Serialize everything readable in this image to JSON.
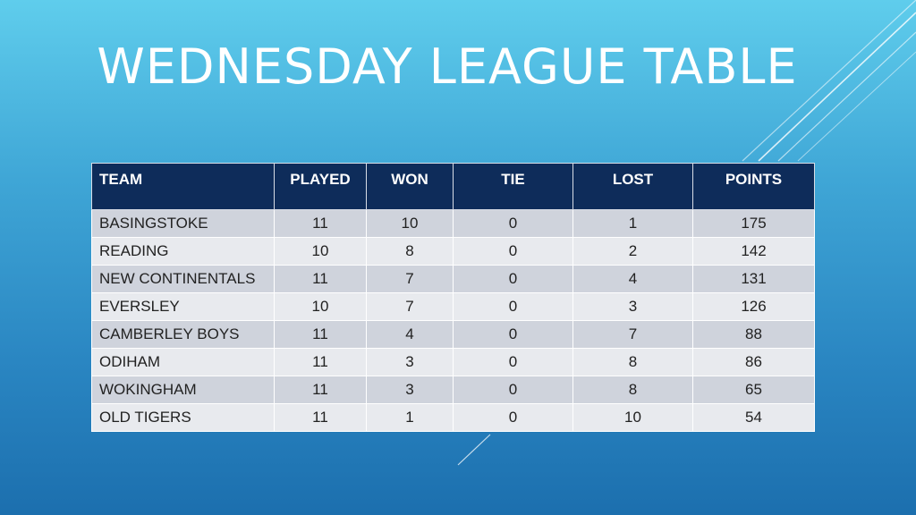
{
  "slide": {
    "title": "WEDNESDAY LEAGUE TABLE",
    "colors": {
      "header_bg": "#0e2c5a",
      "header_text": "#ffffff",
      "row_odd": "#cfd3dc",
      "row_even": "#e8eaee",
      "background_top": "#5fcdec",
      "background_bottom": "#1c6fae"
    }
  },
  "table": {
    "headers": [
      "TEAM",
      "PLAYED",
      "WON",
      "TIE",
      "LOST",
      "POINTS"
    ],
    "rows": [
      [
        "BASINGSTOKE",
        "11",
        "10",
        "0",
        "1",
        "175"
      ],
      [
        "READING",
        "10",
        "8",
        "0",
        "2",
        "142"
      ],
      [
        "NEW CONTINENTALS",
        "11",
        "7",
        "0",
        "4",
        "131"
      ],
      [
        "EVERSLEY",
        "10",
        "7",
        "0",
        "3",
        "126"
      ],
      [
        "CAMBERLEY BOYS",
        "11",
        "4",
        "0",
        "7",
        "88"
      ],
      [
        "ODIHAM",
        "11",
        "3",
        "0",
        "8",
        "86"
      ],
      [
        "WOKINGHAM",
        "11",
        "3",
        "0",
        "8",
        "65"
      ],
      [
        "OLD TIGERS",
        "11",
        "1",
        "0",
        "10",
        "54"
      ]
    ]
  }
}
